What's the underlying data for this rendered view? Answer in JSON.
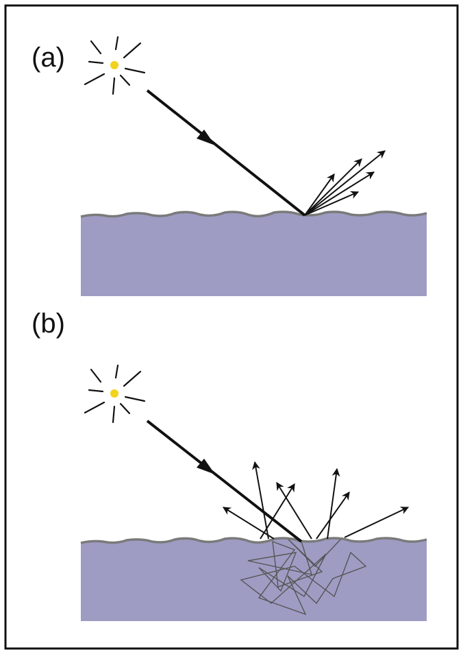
{
  "panels": [
    {
      "label": "(a)"
    },
    {
      "label": "(b)"
    }
  ],
  "colors": {
    "frame": "#111111",
    "material": "#9e9cc3",
    "surface_edge": "#7a7a7a",
    "sun_core": "#f2d21b",
    "ray": "#111111",
    "internal_path": "#555555"
  }
}
